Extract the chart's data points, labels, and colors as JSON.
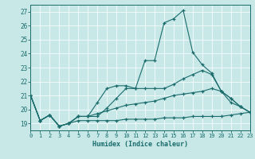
{
  "xlabel": "Humidex (Indice chaleur)",
  "bg_color": "#c8e8e8",
  "line_color": "#1a6b6b",
  "grid_color": "#b0d8d8",
  "xlim": [
    0,
    23
  ],
  "ylim": [
    18.5,
    27.5
  ],
  "yticks": [
    19,
    20,
    21,
    22,
    23,
    24,
    25,
    26,
    27
  ],
  "xticks": [
    0,
    1,
    2,
    3,
    4,
    5,
    6,
    7,
    8,
    9,
    10,
    11,
    12,
    13,
    14,
    15,
    16,
    17,
    18,
    19,
    20,
    21,
    22,
    23
  ],
  "lines": [
    {
      "x": [
        0,
        1,
        2,
        3,
        4,
        5,
        6,
        7,
        8,
        9,
        10,
        11,
        12,
        13,
        14,
        15,
        16,
        17,
        18,
        19,
        20,
        21,
        22,
        23
      ],
      "y": [
        21.0,
        19.2,
        19.6,
        18.8,
        19.0,
        19.5,
        19.5,
        19.5,
        20.1,
        20.8,
        21.5,
        21.5,
        23.5,
        23.5,
        26.2,
        26.5,
        27.1,
        24.1,
        23.2,
        22.6,
        21.3,
        20.8,
        20.2,
        19.8
      ]
    },
    {
      "x": [
        0,
        1,
        2,
        3,
        4,
        5,
        6,
        7,
        8,
        9,
        10,
        11,
        12,
        13,
        14,
        15,
        16,
        17,
        18,
        19,
        20,
        21,
        22,
        23
      ],
      "y": [
        21.0,
        19.2,
        19.6,
        18.8,
        19.0,
        19.5,
        19.5,
        20.5,
        21.5,
        21.7,
        21.7,
        21.5,
        21.5,
        21.5,
        21.5,
        21.8,
        22.2,
        22.5,
        22.8,
        22.5,
        21.3,
        20.8,
        20.2,
        19.8
      ]
    },
    {
      "x": [
        0,
        1,
        2,
        3,
        4,
        5,
        6,
        7,
        8,
        9,
        10,
        11,
        12,
        13,
        14,
        15,
        16,
        17,
        18,
        19,
        20,
        21,
        22,
        23
      ],
      "y": [
        21.0,
        19.2,
        19.6,
        18.8,
        19.0,
        19.5,
        19.5,
        19.7,
        19.9,
        20.1,
        20.3,
        20.4,
        20.5,
        20.6,
        20.8,
        21.0,
        21.1,
        21.2,
        21.3,
        21.5,
        21.3,
        20.5,
        20.2,
        19.8
      ]
    },
    {
      "x": [
        0,
        1,
        2,
        3,
        4,
        5,
        6,
        7,
        8,
        9,
        10,
        11,
        12,
        13,
        14,
        15,
        16,
        17,
        18,
        19,
        20,
        21,
        22,
        23
      ],
      "y": [
        21.0,
        19.2,
        19.6,
        18.8,
        19.0,
        19.2,
        19.2,
        19.2,
        19.2,
        19.2,
        19.3,
        19.3,
        19.3,
        19.3,
        19.4,
        19.4,
        19.4,
        19.5,
        19.5,
        19.5,
        19.5,
        19.6,
        19.7,
        19.8
      ]
    }
  ]
}
